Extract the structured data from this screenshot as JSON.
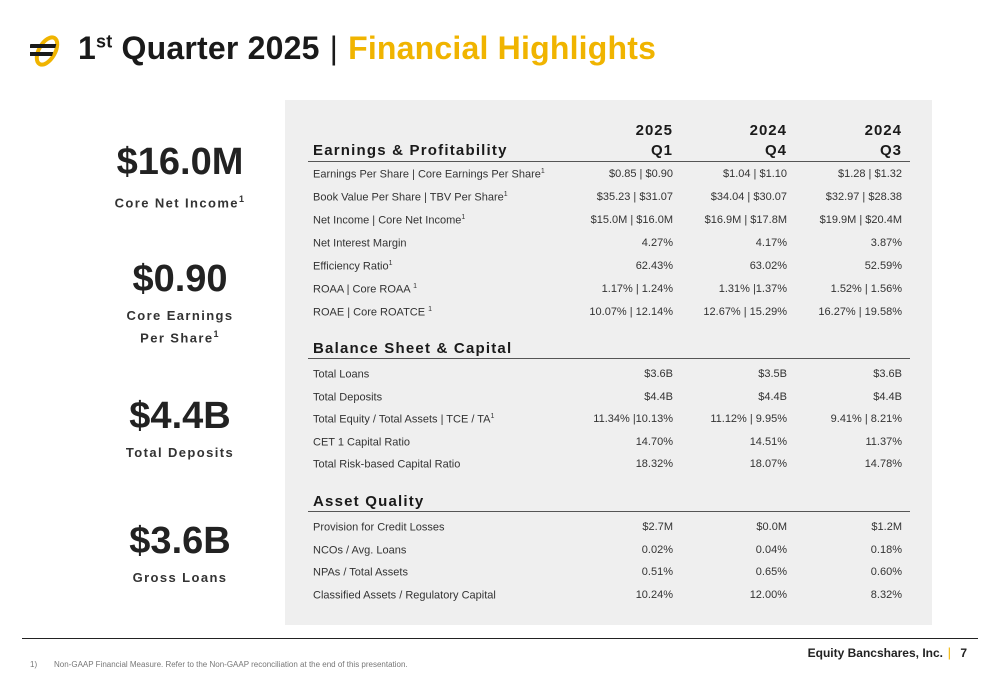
{
  "header": {
    "title_prefix": "1",
    "title_sup": "st",
    "title_mid": " Quarter 2025",
    "title_sep": "|",
    "title_highlight": "Financial Highlights",
    "logo_icon": "company-logo",
    "accent_color": "#f0b400"
  },
  "kpis": [
    {
      "value": "$16.0M",
      "label": "Core Net Income",
      "sup": "1"
    },
    {
      "value": "$0.90",
      "label_line1": "Core Earnings",
      "label_line2": "Per Share",
      "sup": "1"
    },
    {
      "value": "$4.4B",
      "label": "Total Deposits"
    },
    {
      "value": "$3.6B",
      "label": "Gross Loans"
    }
  ],
  "table": {
    "columns": [
      {
        "year": "2025",
        "quarter": "Q1"
      },
      {
        "year": "2024",
        "quarter": "Q4"
      },
      {
        "year": "2024",
        "quarter": "Q3"
      }
    ],
    "sections": [
      {
        "title": "Earnings & Profitability",
        "rows": [
          {
            "label": "Earnings Per Share | Core Earnings Per Share",
            "sup": "1",
            "v": [
              "$0.85 | $0.90",
              "$1.04 | $1.10",
              "$1.28 | $1.32"
            ]
          },
          {
            "label": "Book Value Per Share | TBV Per Share",
            "sup": "1",
            "v": [
              "$35.23 | $31.07",
              "$34.04 | $30.07",
              "$32.97 | $28.38"
            ]
          },
          {
            "label": "Net Income | Core Net Income",
            "sup": "1",
            "v": [
              "$15.0M | $16.0M",
              "$16.9M | $17.8M",
              "$19.9M | $20.4M"
            ]
          },
          {
            "label": "Net Interest Margin",
            "sup": "",
            "v": [
              "4.27%",
              "4.17%",
              "3.87%"
            ]
          },
          {
            "label": "Efficiency Ratio",
            "sup": "1",
            "v": [
              "62.43%",
              "63.02%",
              "52.59%"
            ]
          },
          {
            "label": "ROAA | Core ROAA ",
            "sup": "1",
            "v": [
              "1.17% | 1.24%",
              "1.31% |1.37%",
              "1.52% | 1.56%"
            ]
          },
          {
            "label": "ROAE | Core ROATCE ",
            "sup": "1",
            "v": [
              "10.07% | 12.14%",
              "12.67% | 15.29%",
              "16.27% | 19.58%"
            ]
          }
        ]
      },
      {
        "title": "Balance Sheet & Capital",
        "rows": [
          {
            "label": "Total Loans",
            "sup": "",
            "v": [
              "$3.6B",
              "$3.5B",
              "$3.6B"
            ]
          },
          {
            "label": "Total Deposits",
            "sup": "",
            "v": [
              "$4.4B",
              "$4.4B",
              "$4.4B"
            ]
          },
          {
            "label": "Total Equity / Total Assets | TCE / TA",
            "sup": "1",
            "v": [
              "11.34% |10.13%",
              "11.12% | 9.95%",
              "9.41% | 8.21%"
            ]
          },
          {
            "label": "CET 1 Capital Ratio",
            "sup": "",
            "v": [
              "14.70%",
              "14.51%",
              "11.37%"
            ]
          },
          {
            "label": "Total Risk-based Capital Ratio",
            "sup": "",
            "v": [
              "18.32%",
              "18.07%",
              "14.78%"
            ]
          }
        ]
      },
      {
        "title": "Asset Quality",
        "rows": [
          {
            "label": "Provision for Credit Losses",
            "sup": "",
            "v": [
              "$2.7M",
              "$0.0M",
              "$1.2M"
            ]
          },
          {
            "label": "NCOs / Avg. Loans",
            "sup": "",
            "v": [
              "0.02%",
              "0.04%",
              "0.18%"
            ]
          },
          {
            "label": "NPAs / Total Assets",
            "sup": "",
            "v": [
              "0.51%",
              "0.65%",
              "0.60%"
            ]
          },
          {
            "label": "Classified Assets / Regulatory Capital",
            "sup": "",
            "v": [
              "10.24%",
              "12.00%",
              "8.32%"
            ]
          }
        ]
      }
    ]
  },
  "footer": {
    "brand": "Equity Bancshares, Inc.",
    "separator": "|",
    "page": "7",
    "footnote_num": "1)",
    "footnote": "Non-GAAP Financial Measure. Refer to the Non-GAAP reconciliation at the end of this presentation."
  }
}
